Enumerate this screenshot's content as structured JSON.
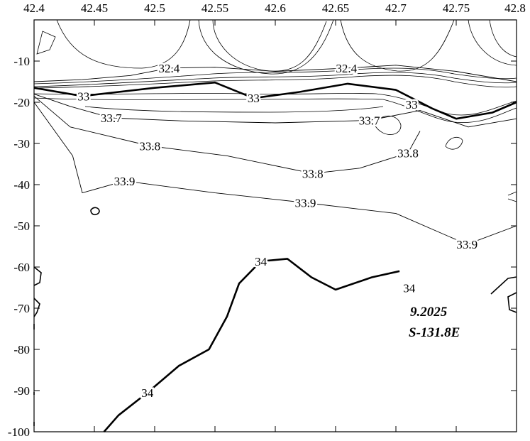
{
  "chart_data": {
    "type": "contour",
    "title": "",
    "xlabel": "",
    "ylabel": "",
    "xlim": [
      42.4,
      42.8
    ],
    "ylim": [
      -100,
      0
    ],
    "grid": false,
    "x_ticks": [
      "42.4",
      "42.45",
      "42.5",
      "42.55",
      "42.6",
      "42.65",
      "42.7",
      "42.75",
      "42.8"
    ],
    "x_tick_values": [
      42.4,
      42.45,
      42.5,
      42.55,
      42.6,
      42.65,
      42.7,
      42.75,
      42.8
    ],
    "y_ticks": [
      "-10",
      "-20",
      "-30",
      "-40",
      "-50",
      "-60",
      "-70",
      "-80",
      "-90",
      "-100"
    ],
    "y_tick_values": [
      -10,
      -20,
      -30,
      -40,
      -50,
      -60,
      -70,
      -80,
      -90,
      -100
    ],
    "annotations": [
      "9.2025",
      "S-131.8E"
    ],
    "contour_levels": [
      32.4,
      33,
      33.7,
      33.8,
      33.9,
      34
    ],
    "contours": [
      {
        "level": 32.4,
        "label": "32.4",
        "label_points": [
          [
            42.512,
            -11.7
          ],
          [
            42.659,
            -11.7
          ]
        ],
        "path": [
          [
            42.4,
            -15
          ],
          [
            42.44,
            -14.5
          ],
          [
            42.48,
            -13.5
          ],
          [
            42.512,
            -11.7
          ],
          [
            42.55,
            -11.5
          ],
          [
            42.6,
            -12.5
          ],
          [
            42.659,
            -11.7
          ],
          [
            42.7,
            -11
          ],
          [
            42.75,
            -12.5
          ],
          [
            42.8,
            -15
          ]
        ]
      },
      {
        "level": 33,
        "label": "33",
        "label_points": [
          [
            42.441,
            -18.5
          ],
          [
            42.582,
            -19.0
          ],
          [
            42.713,
            -20.5
          ]
        ],
        "path": [
          [
            42.4,
            -16.5
          ],
          [
            42.44,
            -18.5
          ],
          [
            42.5,
            -16.5
          ],
          [
            42.55,
            -15.2
          ],
          [
            42.582,
            -19.0
          ],
          [
            42.62,
            -17.5
          ],
          [
            42.66,
            -15.5
          ],
          [
            42.7,
            -17.0
          ],
          [
            42.73,
            -21.5
          ],
          [
            42.75,
            -24
          ],
          [
            42.78,
            -22.5
          ],
          [
            42.8,
            -20
          ]
        ]
      },
      {
        "level": 33.7,
        "label": "33.7",
        "label_points": [
          [
            42.464,
            -23.8
          ],
          [
            42.678,
            -24.4
          ]
        ],
        "path": [
          [
            42.4,
            -18
          ],
          [
            42.43,
            -21
          ],
          [
            42.464,
            -23.8
          ],
          [
            42.52,
            -24.5
          ],
          [
            42.6,
            -25
          ],
          [
            42.678,
            -24.4
          ],
          [
            42.72,
            -22
          ],
          [
            42.76,
            -26
          ],
          [
            42.8,
            -24
          ]
        ]
      },
      {
        "level": 33.8,
        "label": "33.8",
        "label_points": [
          [
            42.496,
            -30.6
          ],
          [
            42.631,
            -37.3
          ],
          [
            42.71,
            -32.3
          ]
        ],
        "path": [
          [
            42.4,
            -18.5
          ],
          [
            42.43,
            -26
          ],
          [
            42.496,
            -30.6
          ],
          [
            42.56,
            -33
          ],
          [
            42.631,
            -37.3
          ],
          [
            42.67,
            -36
          ],
          [
            42.71,
            -32.3
          ],
          [
            42.72,
            -27
          ]
        ]
      },
      {
        "level": 33.9,
        "label": "33.9",
        "label_points": [
          [
            42.475,
            -39.1
          ],
          [
            42.625,
            -44.4
          ],
          [
            42.759,
            -54.5
          ]
        ],
        "path": [
          [
            42.4,
            -20
          ],
          [
            42.432,
            -33
          ],
          [
            42.44,
            -42
          ],
          [
            42.475,
            -39.1
          ],
          [
            42.55,
            -42
          ],
          [
            42.625,
            -44.4
          ],
          [
            42.7,
            -47
          ],
          [
            42.759,
            -54.5
          ],
          [
            42.8,
            -50
          ]
        ]
      },
      {
        "level": 34,
        "label": "34",
        "label_points": [
          [
            42.588,
            -58.6
          ],
          [
            42.711,
            -65.1
          ],
          [
            42.494,
            -90.5
          ]
        ],
        "path": [
          [
            42.458,
            -100
          ],
          [
            42.47,
            -96
          ],
          [
            42.494,
            -90.5
          ],
          [
            42.52,
            -84
          ],
          [
            42.545,
            -80
          ],
          [
            42.56,
            -72
          ],
          [
            42.57,
            -64
          ],
          [
            42.588,
            -58.6
          ],
          [
            42.61,
            -58
          ],
          [
            42.63,
            -62.5
          ],
          [
            42.65,
            -65.5
          ],
          [
            42.68,
            -62.5
          ],
          [
            42.703,
            -61
          ]
        ]
      }
    ]
  }
}
